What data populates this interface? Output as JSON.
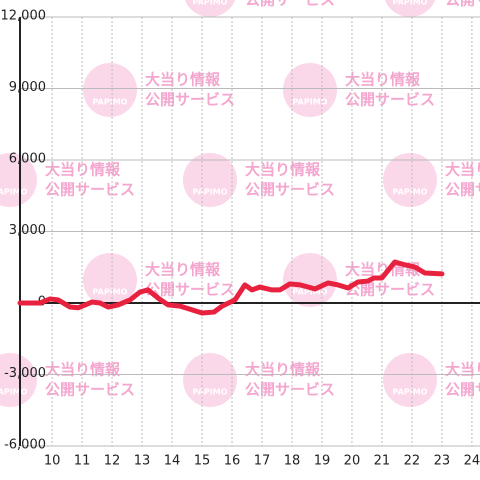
{
  "chart_data": {
    "type": "line",
    "watermark": {
      "logo": "PAPIMO",
      "line1": "大当り情報",
      "line2": "公開サービス"
    },
    "x": [
      8.93,
      9.6,
      9.93,
      10.2,
      10.6,
      10.87,
      11.1,
      11.33,
      11.6,
      11.87,
      12.2,
      12.6,
      12.93,
      13.2,
      13.53,
      13.87,
      14.27,
      14.67,
      15.0,
      15.4,
      15.67,
      16.1,
      16.43,
      16.67,
      16.93,
      17.33,
      17.6,
      17.93,
      18.27,
      18.77,
      19.2,
      19.53,
      19.87,
      20.2,
      20.53,
      20.73,
      21.0,
      21.43,
      21.77,
      22.1,
      22.43,
      23.0
    ],
    "series": [
      {
        "color": "#e8213f",
        "values": [
          0,
          0,
          170,
          130,
          -170,
          -200,
          -80,
          40,
          0,
          -170,
          -80,
          130,
          460,
          550,
          210,
          -80,
          -130,
          -290,
          -420,
          -380,
          -130,
          130,
          760,
          550,
          670,
          550,
          550,
          800,
          760,
          590,
          840,
          760,
          630,
          880,
          920,
          1050,
          1050,
          1720,
          1600,
          1510,
          1260,
          1220
        ]
      }
    ],
    "xlim": [
      8.93,
      24.27
    ],
    "xticks": [
      10,
      11,
      12,
      13,
      14,
      15,
      16,
      17,
      18,
      19,
      20,
      21,
      22,
      23,
      24
    ],
    "ylim": [
      -6000,
      12000
    ],
    "yticks": [
      {
        "value": -6000,
        "label": "-6,000"
      },
      {
        "value": -3000,
        "label": "-3,000"
      },
      0,
      {
        "value": 3000,
        "label": "3,000"
      },
      {
        "value": 6000,
        "label": "6,000"
      },
      {
        "value": 9000,
        "label": "9,000"
      },
      {
        "value": 12000,
        "label": "12,000"
      }
    ],
    "grid": true
  }
}
